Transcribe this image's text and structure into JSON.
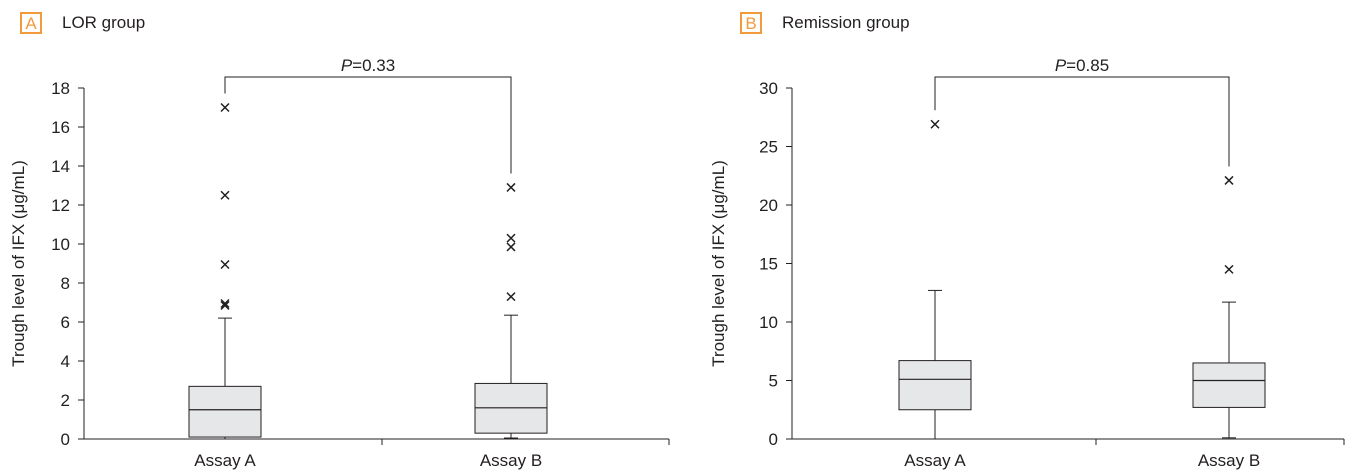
{
  "chart_data": [
    {
      "type": "box",
      "panel_letter": "A",
      "title": "LOR group",
      "ylabel": "Trough level of IFX (μg/mL)",
      "xlabel": "",
      "ylim": [
        0,
        18
      ],
      "yticks": [
        0,
        2,
        4,
        6,
        8,
        10,
        12,
        14,
        16,
        18
      ],
      "categories": [
        "Assay A",
        "Assay B"
      ],
      "boxes": [
        {
          "category": "Assay A",
          "min": 0.0,
          "q1": 0.1,
          "median": 1.5,
          "q3": 2.7,
          "max": 6.2,
          "outliers": [
            6.85,
            6.95,
            8.95,
            12.5,
            17.0
          ]
        },
        {
          "category": "Assay B",
          "min": 0.05,
          "q1": 0.3,
          "median": 1.6,
          "q3": 2.85,
          "max": 6.35,
          "outliers": [
            7.3,
            9.85,
            10.3,
            12.9
          ]
        }
      ],
      "comparison": {
        "p_label": "P",
        "p_text": "=0.33"
      },
      "grid": false,
      "colors": {
        "box_fill": "#e6e7e8",
        "stroke": "#231f20",
        "accent": "#f39a3c"
      }
    },
    {
      "type": "box",
      "panel_letter": "B",
      "title": "Remission group",
      "ylabel": "Trough level of IFX (μg/mL)",
      "xlabel": "",
      "ylim": [
        0,
        30
      ],
      "yticks": [
        0,
        5,
        10,
        15,
        20,
        25,
        30
      ],
      "categories": [
        "Assay A",
        "Assay B"
      ],
      "boxes": [
        {
          "category": "Assay A",
          "min": 0.0,
          "q1": 2.5,
          "median": 5.1,
          "q3": 6.7,
          "max": 12.7,
          "outliers": [
            26.9
          ]
        },
        {
          "category": "Assay B",
          "min": 0.1,
          "q1": 2.7,
          "median": 5.0,
          "q3": 6.5,
          "max": 11.7,
          "outliers": [
            14.5,
            22.1
          ]
        }
      ],
      "comparison": {
        "p_label": "P",
        "p_text": "=0.85"
      },
      "grid": false,
      "colors": {
        "box_fill": "#e6e7e8",
        "stroke": "#231f20",
        "accent": "#f39a3c"
      }
    }
  ]
}
